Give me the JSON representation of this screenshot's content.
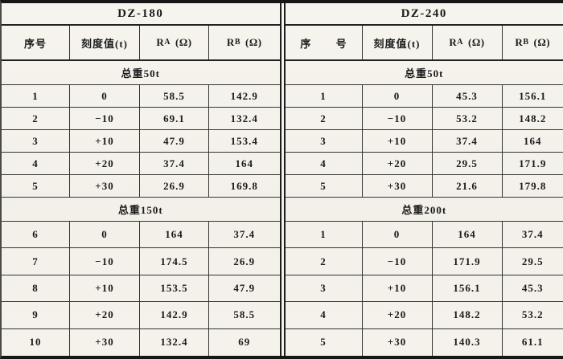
{
  "colors": {
    "paper": "#f5f2eb",
    "ink": "#1b1b1b"
  },
  "tables": [
    {
      "title": "DZ-180",
      "columns": {
        "serial": "序号",
        "scale": "刻度值(t)",
        "ra": {
          "base": "R",
          "sub": "A",
          "unit": "(Ω)"
        },
        "rb": {
          "base": "R",
          "sub": "B",
          "unit": "(Ω)"
        }
      },
      "groups": [
        {
          "label": "总重50t",
          "rows": [
            [
              "1",
              "0",
              "58.5",
              "142.9"
            ],
            [
              "2",
              "−10",
              "69.1",
              "132.4"
            ],
            [
              "3",
              "+10",
              "47.9",
              "153.4"
            ],
            [
              "4",
              "+20",
              "37.4",
              "164"
            ],
            [
              "5",
              "+30",
              "26.9",
              "169.8"
            ]
          ]
        },
        {
          "label": "总重150t",
          "rows": [
            [
              "6",
              "0",
              "164",
              "37.4"
            ],
            [
              "7",
              "−10",
              "174.5",
              "26.9"
            ],
            [
              "8",
              "+10",
              "153.5",
              "47.9"
            ],
            [
              "9",
              "+20",
              "142.9",
              "58.5"
            ],
            [
              "10",
              "+30",
              "132.4",
              "69"
            ]
          ]
        }
      ]
    },
    {
      "title": "DZ-240",
      "columns": {
        "serial": "序 号",
        "scale": "刻度值(t)",
        "ra": {
          "base": "R",
          "sub": "A",
          "unit": "(Ω)"
        },
        "rb": {
          "base": "R",
          "sub": "B",
          "unit": "(Ω)"
        }
      },
      "groups": [
        {
          "label": "总重50t",
          "rows": [
            [
              "1",
              "0",
              "45.3",
              "156.1"
            ],
            [
              "2",
              "−10",
              "53.2",
              "148.2"
            ],
            [
              "3",
              "+10",
              "37.4",
              "164"
            ],
            [
              "4",
              "+20",
              "29.5",
              "171.9"
            ],
            [
              "5",
              "+30",
              "21.6",
              "179.8"
            ]
          ]
        },
        {
          "label": "总重200t",
          "rows": [
            [
              "1",
              "0",
              "164",
              "37.4"
            ],
            [
              "2",
              "−10",
              "171.9",
              "29.5"
            ],
            [
              "3",
              "+10",
              "156.1",
              "45.3"
            ],
            [
              "4",
              "+20",
              "148.2",
              "53.2"
            ],
            [
              "5",
              "+30",
              "140.3",
              "61.1"
            ]
          ]
        }
      ]
    }
  ]
}
